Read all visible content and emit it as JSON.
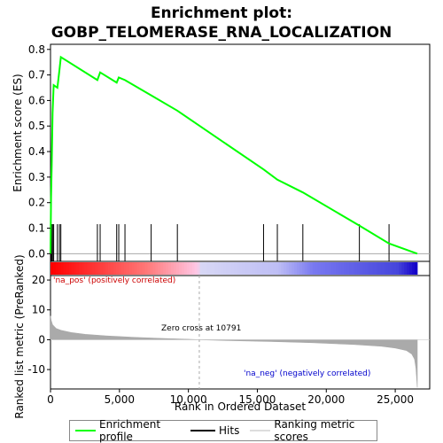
{
  "chart_data": {
    "type": "line",
    "title_line1": "Enrichment plot:",
    "title_line2": "GOBP_TELOMERASE_RNA_LOCALIZATION",
    "es_ylabel": "Enrichment score (ES)",
    "metric_ylabel": "Ranked list metric (PreRanked)",
    "xlabel": "Rank in Ordered Dataset",
    "x_ticks": [
      "0",
      "5,000",
      "10,000",
      "15,000",
      "20,000",
      "25,000"
    ],
    "x_tick_values": [
      0,
      5000,
      10000,
      15000,
      20000,
      25000
    ],
    "xlim": [
      0,
      27500
    ],
    "es_ticks": [
      "0.0",
      "0.1",
      "0.2",
      "0.3",
      "0.4",
      "0.5",
      "0.6",
      "0.7",
      "0.8"
    ],
    "es_tick_values": [
      0.0,
      0.1,
      0.2,
      0.3,
      0.4,
      0.5,
      0.6,
      0.7,
      0.8
    ],
    "es_ylim": [
      -0.03,
      0.82
    ],
    "metric_ticks": [
      "20",
      "10",
      "0",
      "-10"
    ],
    "metric_tick_values": [
      20,
      10,
      0,
      -10
    ],
    "metric_ylim": [
      -16.5,
      21.5
    ],
    "zero_cross_label": "Zero cross at 10791",
    "zero_cross": 10791,
    "pos_label": "'na_pos' (positively correlated)",
    "neg_label": "'na_neg' (negatively correlated)",
    "n_genes": 26600,
    "series": [
      {
        "name": "Enrichment profile",
        "color": "#00ff00",
        "x": [
          0,
          40,
          90,
          150,
          230,
          500,
          650,
          750,
          3400,
          3600,
          4800,
          4950,
          5400,
          7300,
          9200,
          15450,
          16450,
          18300,
          22400,
          24550,
          26600
        ],
        "y": [
          0.0,
          0.22,
          0.35,
          0.55,
          0.66,
          0.65,
          0.72,
          0.77,
          0.68,
          0.71,
          0.67,
          0.69,
          0.68,
          0.62,
          0.56,
          0.33,
          0.29,
          0.24,
          0.11,
          0.04,
          0.0
        ]
      }
    ],
    "hits": [
      40,
      90,
      150,
      230,
      500,
      650,
      750,
      3400,
      3600,
      4800,
      4950,
      5400,
      7300,
      9200,
      15450,
      16450,
      18300,
      22400,
      24550
    ],
    "metric_curve": {
      "x": [
        0,
        50,
        150,
        400,
        800,
        1500,
        2500,
        4000,
        6000,
        8000,
        10000,
        10791,
        13000,
        16000,
        19000,
        22000,
        24000,
        25000,
        25800,
        26200,
        26400,
        26500,
        26600
      ],
      "y": [
        8,
        6.5,
        5,
        3.8,
        3.1,
        2.4,
        1.8,
        1.3,
        0.8,
        0.45,
        0.15,
        0,
        -0.3,
        -0.6,
        -1.0,
        -1.6,
        -2.2,
        -2.8,
        -3.6,
        -4.8,
        -6.5,
        -9.5,
        -16
      ]
    },
    "legend": {
      "profile": "Enrichment profile",
      "hits": "Hits",
      "metric": "Ranking metric scores"
    },
    "colors": {
      "profile": "#00ff00",
      "hits": "#000000",
      "metric": "#aaaaaa",
      "zero_line": "#aaaaaa",
      "pos_text": "#cc0000",
      "neg_text": "#0000cc",
      "heat_pos_strong": "#ff0000",
      "heat_neg_strong": "#0000ff"
    }
  }
}
